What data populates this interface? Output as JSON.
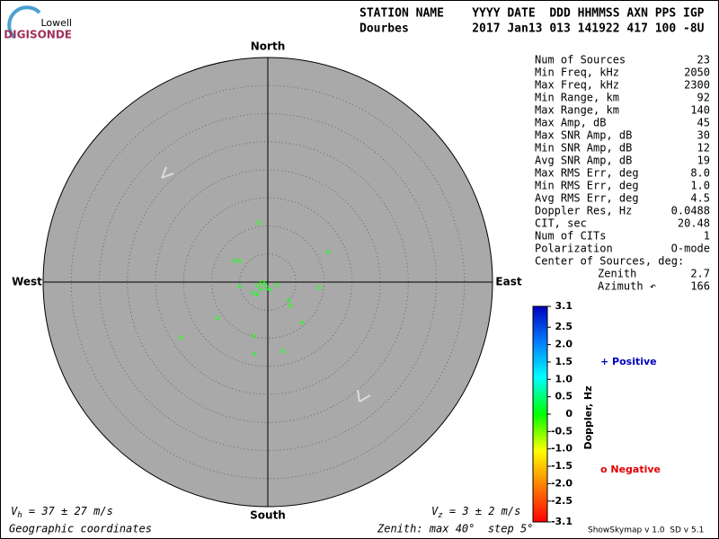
{
  "logo": {
    "top": "Lowell",
    "bottom": "DIGISONDE"
  },
  "header": {
    "line1": "STATION NAME    YYYY DATE  DDD HHMMSS AXN PPS IGP",
    "line2": "Dourbes         2017 Jan13 013 141922 417 100 -8U"
  },
  "directions": {
    "north": "North",
    "south": "South",
    "west": "West",
    "east": "East"
  },
  "skymap": {
    "zenith_max": 40,
    "zenith_step": 5,
    "points": [
      {
        "x": -1.6,
        "y": 10.6,
        "doppler": -0.1
      },
      {
        "x": -5.9,
        "y": 3.8,
        "doppler": 0.1
      },
      {
        "x": -5.0,
        "y": 3.8,
        "doppler": -0.1
      },
      {
        "x": 10.7,
        "y": 5.4,
        "doppler": 0.1
      },
      {
        "x": 9.1,
        "y": -1.0,
        "doppler": -0.1
      },
      {
        "x": -5.0,
        "y": -0.8,
        "doppler": 0.1
      },
      {
        "x": 1.6,
        "y": -0.5,
        "doppler": -0.1
      },
      {
        "x": 3.7,
        "y": -3.2,
        "doppler": 0.1
      },
      {
        "x": 4.0,
        "y": -4.2,
        "doppler": -0.1
      },
      {
        "x": -9.0,
        "y": -6.4,
        "doppler": -0.1
      },
      {
        "x": 6.1,
        "y": -7.2,
        "doppler": 0.1
      },
      {
        "x": -15.5,
        "y": -9.9,
        "doppler": -0.1
      },
      {
        "x": -2.4,
        "y": -9.6,
        "doppler": -0.1
      },
      {
        "x": -2.4,
        "y": -12.8,
        "doppler": 0.1
      },
      {
        "x": 2.7,
        "y": -12.3,
        "doppler": -0.1
      },
      {
        "x": -1.3,
        "y": -1.3,
        "doppler": 0.1
      },
      {
        "x": -1.9,
        "y": -2.2,
        "doppler": 0.1
      },
      {
        "x": -0.6,
        "y": -0.3,
        "doppler": 0.1
      },
      {
        "x": -0.2,
        "y": -1.0,
        "doppler": -0.1
      },
      {
        "x": -2.7,
        "y": -1.9,
        "doppler": 0.1
      },
      {
        "x": -1.0,
        "y": 0.0,
        "doppler": -0.1
      },
      {
        "x": 0.3,
        "y": -1.4,
        "doppler": 0.1
      },
      {
        "x": -1.8,
        "y": -0.6,
        "doppler": -0.1
      }
    ]
  },
  "table": {
    "rows": [
      [
        "Num of Sources",
        "23"
      ],
      [
        "Min Freq, kHz",
        "2050"
      ],
      [
        "Max Freq, kHz",
        "2300"
      ],
      [
        "Min Range, km",
        "92"
      ],
      [
        "Max Range, km",
        "140"
      ],
      [
        "Max Amp, dB",
        "45"
      ],
      [
        "Max SNR Amp, dB",
        "30"
      ],
      [
        "Min SNR Amp, dB",
        "12"
      ],
      [
        "Avg SNR Amp, dB",
        "19"
      ],
      [
        "Max RMS Err, deg",
        "8.0"
      ],
      [
        "Min RMS Err, deg",
        "1.0"
      ],
      [
        "Avg RMS Err, deg",
        "4.5"
      ],
      [
        "Doppler Res, Hz",
        "0.0488"
      ],
      [
        "CIT, sec",
        "20.48"
      ],
      [
        "Num of CITs",
        "1"
      ],
      [
        "Polarization",
        "O-mode"
      ]
    ],
    "center_title": "Center of Sources, deg:",
    "center_rows": [
      [
        "Zenith",
        "2.7"
      ],
      [
        "Azimuth ↶",
        "166"
      ]
    ]
  },
  "colorbar": {
    "label": "Doppler, Hz",
    "lim": [
      -3.1,
      3.1
    ],
    "ticks": [
      3.1,
      2.5,
      {
        "value": 2,
        "label": "2.0"
      },
      1.5,
      {
        "value": 1,
        "label": "1.0"
      },
      0.5,
      0,
      -0.5,
      {
        "value": -1,
        "label": "-1.0"
      },
      -1.5,
      {
        "value": -2,
        "label": "-2.0"
      },
      -2.5,
      -3.1
    ]
  },
  "legend": {
    "positive": "+ Positive",
    "negative": "o Negative"
  },
  "footer": {
    "vh_symbol": "V",
    "vh_sub": "h",
    "vh_text": " = 37 ± 27 m/s",
    "vz_symbol": "V",
    "vz_sub": "z",
    "vz_text": " = 3 ± 2 m/s",
    "coords": "Geographic coordinates",
    "zenith": "Zenith: max 40°  step 5°",
    "version": "ShowSkymap v 1.0  SD v 5.1"
  }
}
